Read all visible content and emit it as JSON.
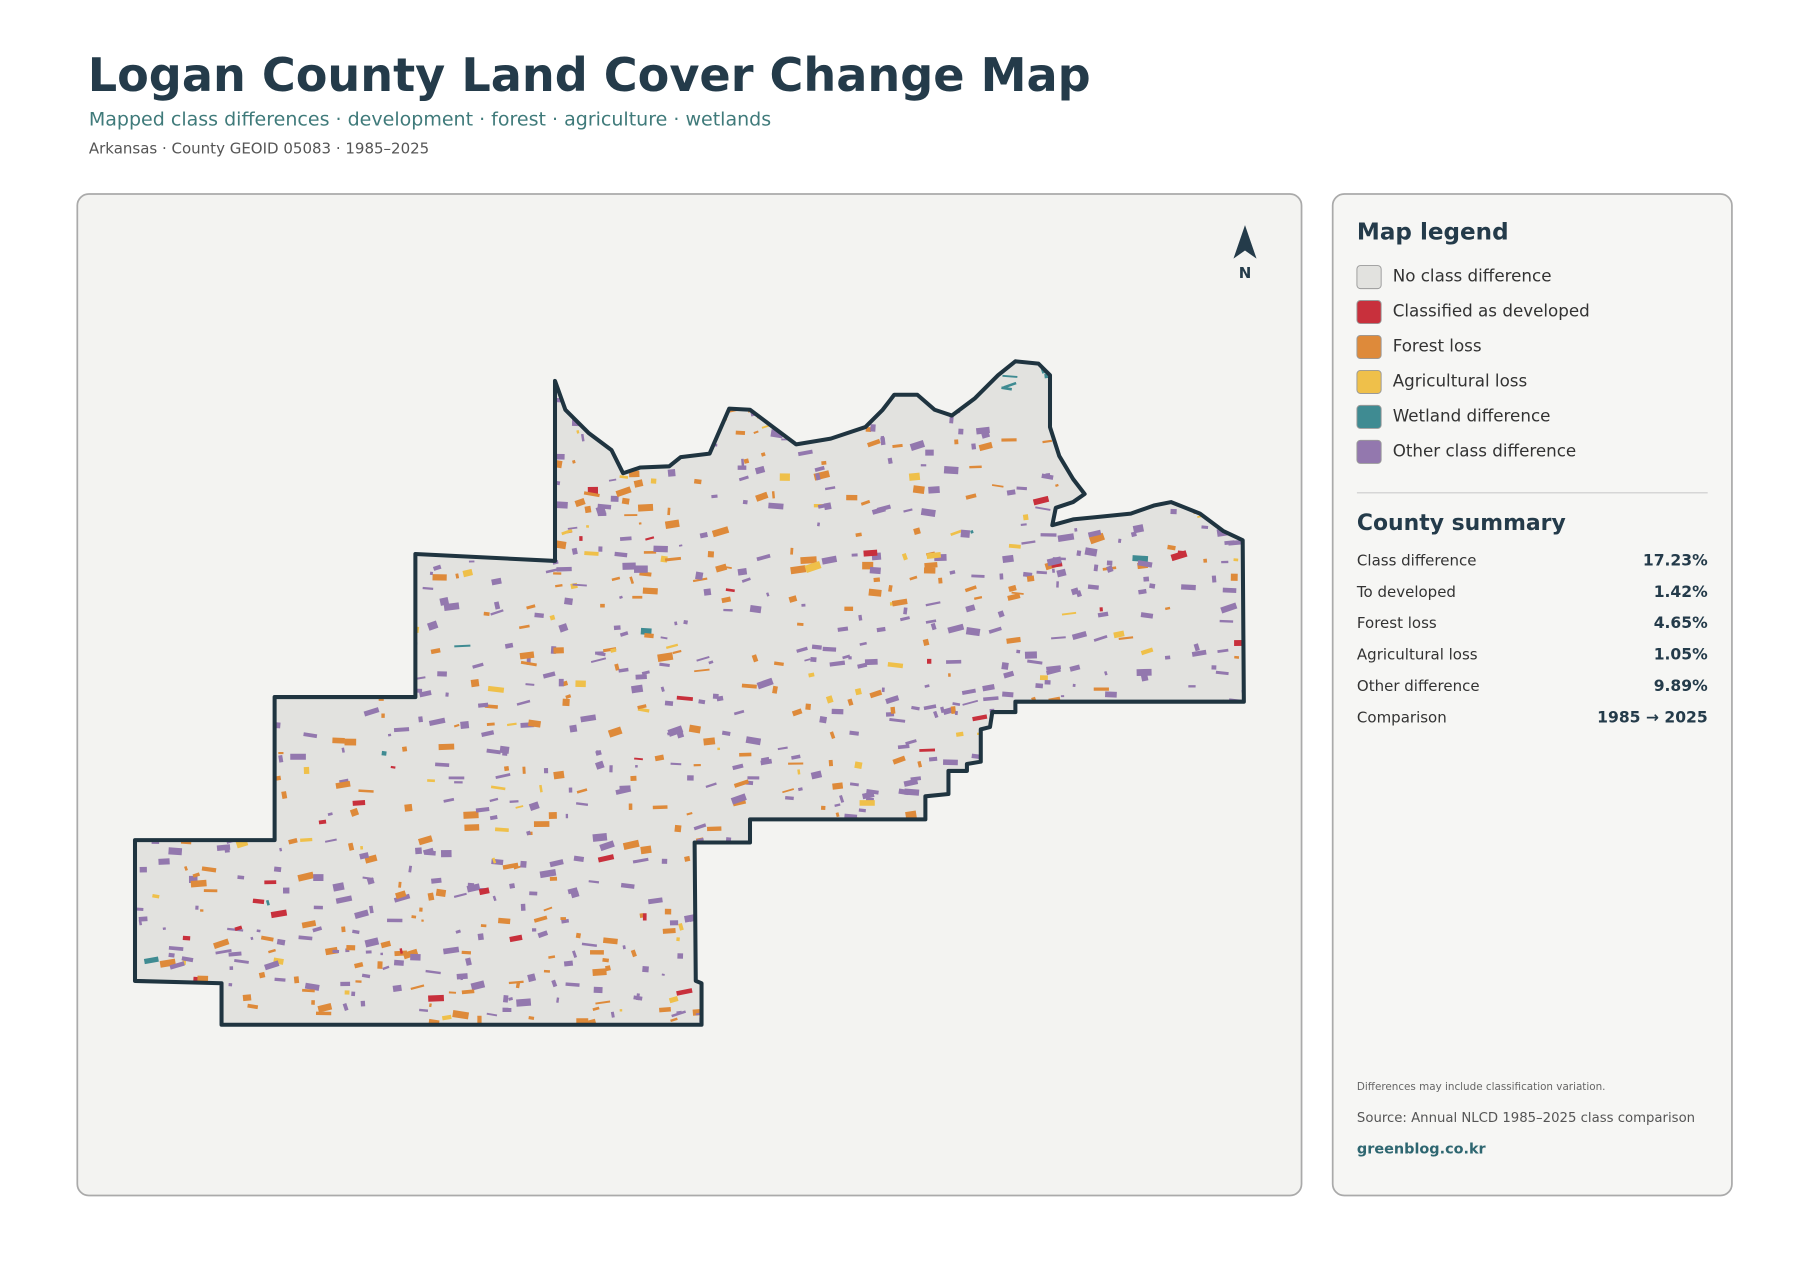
{
  "header": {
    "title": "Logan County Land Cover Change Map",
    "subtitle": "Mapped class differences · development · forest · agriculture · wetlands",
    "meta": "Arkansas · County GEOID 05083 · 1985–2025"
  },
  "map": {
    "north_label": "N"
  },
  "legend": {
    "title": "Map legend",
    "items": [
      {
        "label": "No class difference",
        "color": "#e2e2df"
      },
      {
        "label": "Classified as developed",
        "color": "#c8303c"
      },
      {
        "label": "Forest loss",
        "color": "#de8a3a"
      },
      {
        "label": "Agricultural loss",
        "color": "#efc04a"
      },
      {
        "label": "Wetland difference",
        "color": "#3f8b92"
      },
      {
        "label": "Other class difference",
        "color": "#9378ae"
      }
    ]
  },
  "summary": {
    "title": "County summary",
    "rows": [
      {
        "label": "Class difference",
        "value": "17.23%"
      },
      {
        "label": "To developed",
        "value": "1.42%"
      },
      {
        "label": "Forest loss",
        "value": "4.65%"
      },
      {
        "label": "Agricultural loss",
        "value": "1.05%"
      },
      {
        "label": "Other difference",
        "value": "9.89%"
      },
      {
        "label": "Comparison",
        "value": "1985 → 2025"
      }
    ]
  },
  "footer": {
    "note": "Differences may include classification variation.",
    "source": "Source: Annual NLCD 1985–2025 class comparison",
    "site": "greenblog.co.kr"
  }
}
